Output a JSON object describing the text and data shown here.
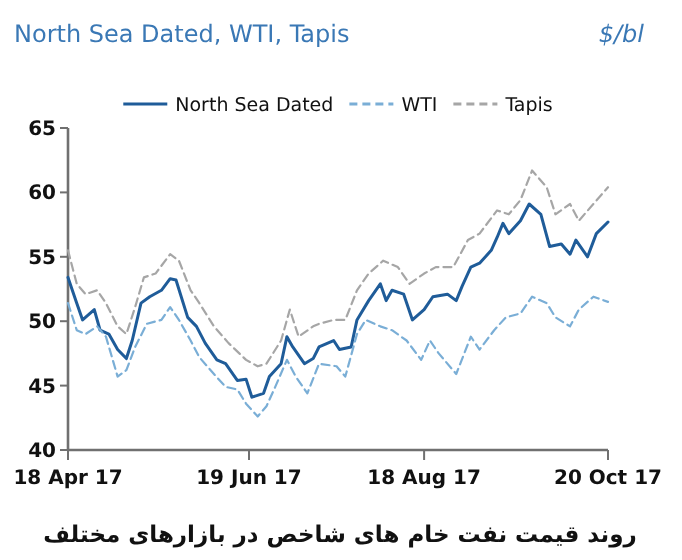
{
  "chart_data": {
    "type": "line",
    "title": "North Sea Dated, WTI, Tapis",
    "ylabel": "$/bl",
    "annotations": [
      "روند قیمت نفت خام های شاخص در بازارهای مختلف"
    ],
    "legend": "top",
    "xlim": [
      "2017-04-18",
      "2017-10-20"
    ],
    "xticks": [
      {
        "value": "2017-04-18",
        "label": "18 Apr 17"
      },
      {
        "value": "2017-06-19",
        "label": "19 Jun 17"
      },
      {
        "value": "2017-08-18",
        "label": "18 Aug 17"
      },
      {
        "value": "2017-10-20",
        "label": "20 Oct 17"
      }
    ],
    "ylim": [
      40,
      65
    ],
    "yticks": [
      40,
      45,
      50,
      55,
      60,
      65
    ],
    "series": [
      {
        "name": "North Sea Dated",
        "color": "#1f5c99",
        "line_style": "solid",
        "x": [
          "2017-04-18",
          "2017-04-21",
          "2017-04-23",
          "2017-04-27",
          "2017-04-29",
          "2017-05-02",
          "2017-05-05",
          "2017-05-08",
          "2017-05-10",
          "2017-05-13",
          "2017-05-16",
          "2017-05-20",
          "2017-05-23",
          "2017-05-25",
          "2017-05-29",
          "2017-06-01",
          "2017-06-04",
          "2017-06-08",
          "2017-06-11",
          "2017-06-15",
          "2017-06-18",
          "2017-06-20",
          "2017-06-24",
          "2017-06-26",
          "2017-06-30",
          "2017-07-02",
          "2017-07-04",
          "2017-07-08",
          "2017-07-11",
          "2017-07-13",
          "2017-07-18",
          "2017-07-20",
          "2017-07-24",
          "2017-07-26",
          "2017-07-30",
          "2017-08-03",
          "2017-08-05",
          "2017-08-07",
          "2017-08-11",
          "2017-08-14",
          "2017-08-18",
          "2017-08-21",
          "2017-08-26",
          "2017-08-29",
          "2017-08-31",
          "2017-09-03",
          "2017-09-06",
          "2017-09-10",
          "2017-09-12",
          "2017-09-14",
          "2017-09-16",
          "2017-09-20",
          "2017-09-23",
          "2017-09-27",
          "2017-09-30",
          "2017-10-04",
          "2017-10-07",
          "2017-10-09",
          "2017-10-13",
          "2017-10-16",
          "2017-10-20"
        ],
        "values": [
          53.4,
          51.4,
          50.1,
          50.9,
          49.3,
          49.0,
          47.8,
          47.1,
          48.5,
          51.4,
          51.9,
          52.4,
          53.3,
          53.2,
          50.3,
          49.6,
          48.3,
          47.0,
          46.7,
          45.4,
          45.5,
          44.1,
          44.4,
          45.7,
          46.7,
          48.8,
          48.0,
          46.7,
          47.1,
          48.0,
          48.5,
          47.8,
          48.0,
          50.1,
          51.6,
          52.9,
          51.6,
          52.4,
          52.1,
          50.1,
          50.9,
          51.9,
          52.1,
          51.6,
          52.7,
          54.2,
          54.5,
          55.5,
          56.5,
          57.6,
          56.8,
          57.8,
          59.1,
          58.3,
          55.8,
          56.0,
          55.2,
          56.3,
          55.0,
          56.8,
          57.7
        ]
      },
      {
        "name": "WTI",
        "color": "#7aaed6",
        "line_style": "dashed",
        "x": [
          "2017-04-18",
          "2017-04-21",
          "2017-04-24",
          "2017-04-28",
          "2017-05-01",
          "2017-05-05",
          "2017-05-08",
          "2017-05-11",
          "2017-05-15",
          "2017-05-20",
          "2017-05-23",
          "2017-05-26",
          "2017-05-30",
          "2017-06-02",
          "2017-06-07",
          "2017-06-11",
          "2017-06-15",
          "2017-06-18",
          "2017-06-22",
          "2017-06-25",
          "2017-06-28",
          "2017-07-02",
          "2017-07-05",
          "2017-07-09",
          "2017-07-13",
          "2017-07-19",
          "2017-07-22",
          "2017-07-26",
          "2017-07-29",
          "2017-08-03",
          "2017-08-07",
          "2017-08-12",
          "2017-08-17",
          "2017-08-20",
          "2017-08-23",
          "2017-08-29",
          "2017-09-03",
          "2017-09-06",
          "2017-09-11",
          "2017-09-15",
          "2017-09-20",
          "2017-09-24",
          "2017-09-29",
          "2017-10-02",
          "2017-10-07",
          "2017-10-10",
          "2017-10-15",
          "2017-10-20"
        ],
        "values": [
          51.4,
          49.3,
          49.0,
          49.6,
          48.8,
          45.7,
          46.2,
          48.0,
          49.8,
          50.1,
          51.1,
          50.1,
          48.5,
          47.2,
          45.9,
          44.9,
          44.7,
          43.6,
          42.6,
          43.4,
          44.9,
          47.0,
          45.7,
          44.4,
          46.7,
          46.5,
          45.7,
          49.0,
          50.1,
          49.6,
          49.3,
          48.5,
          47.0,
          48.5,
          47.5,
          45.9,
          48.8,
          47.8,
          49.3,
          50.3,
          50.6,
          51.9,
          51.4,
          50.3,
          49.6,
          50.9,
          51.9,
          51.5
        ]
      },
      {
        "name": "Tapis",
        "color": "#a6a6a6",
        "line_style": "dashed",
        "x": [
          "2017-04-18",
          "2017-04-21",
          "2017-04-24",
          "2017-04-28",
          "2017-05-01",
          "2017-05-05",
          "2017-05-08",
          "2017-05-11",
          "2017-05-14",
          "2017-05-18",
          "2017-05-23",
          "2017-05-26",
          "2017-05-30",
          "2017-06-02",
          "2017-06-07",
          "2017-06-12",
          "2017-06-18",
          "2017-06-22",
          "2017-06-25",
          "2017-06-30",
          "2017-07-03",
          "2017-07-06",
          "2017-07-11",
          "2017-07-13",
          "2017-07-18",
          "2017-07-22",
          "2017-07-26",
          "2017-07-30",
          "2017-08-04",
          "2017-08-09",
          "2017-08-13",
          "2017-08-18",
          "2017-08-22",
          "2017-08-28",
          "2017-09-02",
          "2017-09-06",
          "2017-09-12",
          "2017-09-16",
          "2017-09-20",
          "2017-09-24",
          "2017-09-29",
          "2017-10-02",
          "2017-10-07",
          "2017-10-10",
          "2017-10-15",
          "2017-10-20"
        ],
        "values": [
          55.5,
          52.9,
          52.1,
          52.4,
          51.4,
          49.6,
          49.0,
          51.1,
          53.4,
          53.7,
          55.2,
          54.7,
          52.4,
          51.4,
          49.6,
          48.3,
          47.0,
          46.5,
          46.7,
          48.5,
          50.9,
          48.8,
          49.6,
          49.8,
          50.1,
          50.1,
          52.4,
          53.7,
          54.7,
          54.2,
          52.9,
          53.7,
          54.2,
          54.2,
          56.3,
          56.8,
          58.6,
          58.3,
          59.4,
          61.7,
          60.4,
          58.3,
          59.1,
          57.8,
          59.1,
          60.4
        ]
      }
    ]
  }
}
